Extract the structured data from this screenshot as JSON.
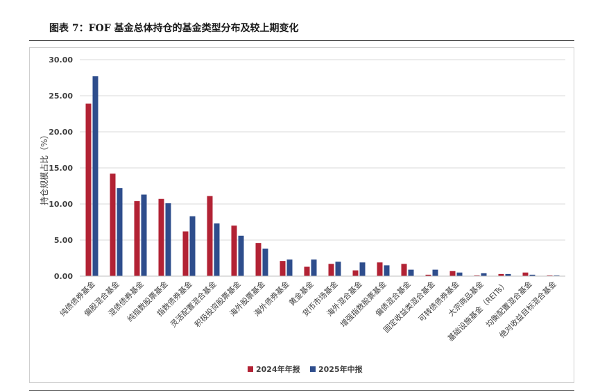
{
  "caption": "图表 7：FOF 基金总体持仓的基金类型分布及较上期变化",
  "chart_data": {
    "type": "bar",
    "ylabel": "持仓规模占比（%）",
    "ylim": [
      0,
      30
    ],
    "yticks": [
      "0.00",
      "5.00",
      "10.00",
      "15.00",
      "20.00",
      "25.00",
      "30.00"
    ],
    "grid": true,
    "legend_position": "bottom",
    "categories": [
      "纯债债券基金",
      "偏股混合基金",
      "混债债券基金",
      "纯指数股票基金",
      "指数债券基金",
      "灵活配置混合基金",
      "积极投资股票基金",
      "海外股票基金",
      "海外债券基金",
      "黄金基金",
      "货币市场基金",
      "海外混合基金",
      "增强指数股票基金",
      "偏债混合基金",
      "固定收益类混合基金",
      "可转债债券基金",
      "大宗商品基金",
      "基础设施基金（REITs）",
      "均衡配置混合基金",
      "绝对收益目标混合基金"
    ],
    "series": [
      {
        "name": "2024年年报",
        "color": "#b22234",
        "values": [
          23.9,
          14.2,
          10.4,
          10.7,
          6.2,
          11.1,
          7.0,
          4.6,
          2.1,
          1.3,
          1.7,
          0.8,
          1.9,
          1.7,
          0.2,
          0.7,
          0.1,
          0.3,
          0.5,
          0.1
        ]
      },
      {
        "name": "2025年中报",
        "color": "#2e4d8c",
        "values": [
          27.7,
          12.2,
          11.3,
          10.1,
          8.3,
          7.3,
          5.6,
          3.8,
          2.3,
          2.3,
          2.0,
          1.9,
          1.5,
          0.9,
          0.9,
          0.5,
          0.4,
          0.3,
          0.2,
          0.1
        ]
      }
    ]
  }
}
